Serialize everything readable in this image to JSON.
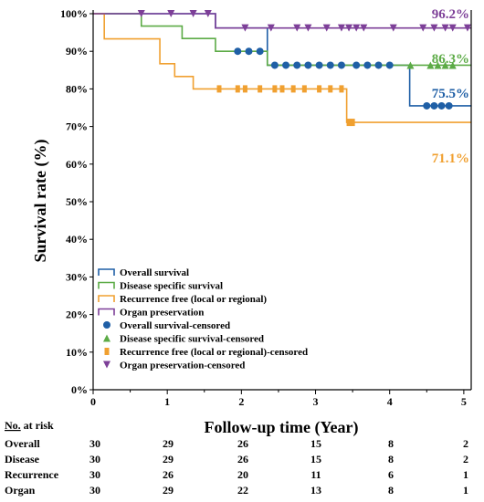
{
  "chart_data": {
    "type": "line",
    "title": "",
    "xlabel": "Follow-up time (Year)",
    "ylabel": "Survival rate (%)",
    "xlim": [
      0,
      5.1
    ],
    "ylim": [
      0,
      100
    ],
    "x_ticks": [
      "0",
      "1",
      "2",
      "3",
      "4",
      "5"
    ],
    "y_ticks": [
      "0%",
      "10%",
      "20%",
      "30%",
      "40%",
      "50%",
      "60%",
      "70%",
      "80%",
      "90%",
      "100%"
    ],
    "grid": false,
    "legend_position": "lower-left",
    "series": [
      {
        "name": "Overall survival",
        "censored_name": "Overall survival-censored",
        "color": "#1f5fa6",
        "marker": "circle",
        "steps": [
          [
            0,
            100
          ],
          [
            1.65,
            96.2
          ],
          [
            2.35,
            86.3
          ],
          [
            4.27,
            75.5
          ]
        ],
        "censored": [
          [
            1.95,
            90
          ],
          [
            2.1,
            90
          ],
          [
            2.25,
            90
          ],
          [
            2.45,
            86.3
          ],
          [
            2.6,
            86.3
          ],
          [
            2.75,
            86.3
          ],
          [
            2.9,
            86.3
          ],
          [
            3.05,
            86.3
          ],
          [
            3.2,
            86.3
          ],
          [
            3.35,
            86.3
          ],
          [
            3.55,
            86.3
          ],
          [
            3.7,
            86.3
          ],
          [
            3.85,
            86.3
          ],
          [
            4.0,
            86.3
          ],
          [
            4.5,
            75.5
          ],
          [
            4.6,
            75.5
          ],
          [
            4.7,
            75.5
          ],
          [
            4.8,
            75.5
          ]
        ],
        "end_label": "75.5%"
      },
      {
        "name": "Disease specific survival",
        "censored_name": "Disease specific survival-censored",
        "color": "#5cab46",
        "marker": "triangle",
        "steps": [
          [
            0,
            100
          ],
          [
            0.65,
            96.7
          ],
          [
            1.2,
            93.4
          ],
          [
            1.65,
            90
          ],
          [
            2.35,
            86.3
          ]
        ],
        "censored": [
          [
            4.28,
            86.3
          ],
          [
            4.55,
            86.3
          ],
          [
            4.65,
            86.3
          ],
          [
            4.75,
            86.3
          ],
          [
            4.85,
            86.3
          ]
        ],
        "end_label": "86.3%"
      },
      {
        "name": "Recurrence free (local or regional)",
        "censored_name": "Recurrence free (local or regional)-censored",
        "color": "#f0a030",
        "marker": "square",
        "steps": [
          [
            0,
            100
          ],
          [
            0.15,
            93.3
          ],
          [
            0.9,
            86.7
          ],
          [
            1.1,
            83.3
          ],
          [
            1.35,
            80
          ],
          [
            3.42,
            71.1
          ]
        ],
        "censored": [
          [
            1.7,
            80
          ],
          [
            1.95,
            80
          ],
          [
            2.05,
            80
          ],
          [
            2.25,
            80
          ],
          [
            2.45,
            80
          ],
          [
            2.55,
            80
          ],
          [
            2.7,
            80
          ],
          [
            2.85,
            80
          ],
          [
            3.05,
            80
          ],
          [
            3.2,
            80
          ],
          [
            3.35,
            80
          ],
          [
            3.45,
            71.1
          ],
          [
            3.5,
            71.1
          ]
        ],
        "end_label": "71.1%"
      },
      {
        "name": "Organ preservation",
        "censored_name": "Organ preservation-censored",
        "color": "#7d3f98",
        "marker": "triangle-down",
        "steps": [
          [
            0,
            100
          ],
          [
            1.65,
            96.2
          ]
        ],
        "censored": [
          [
            0.65,
            100
          ],
          [
            1.05,
            100
          ],
          [
            1.35,
            100
          ],
          [
            1.55,
            100
          ],
          [
            2.05,
            96.2
          ],
          [
            2.4,
            96.2
          ],
          [
            2.75,
            96.2
          ],
          [
            2.9,
            96.2
          ],
          [
            3.15,
            96.2
          ],
          [
            3.35,
            96.2
          ],
          [
            3.45,
            96.2
          ],
          [
            3.55,
            96.2
          ],
          [
            3.65,
            96.2
          ],
          [
            4.05,
            96.2
          ],
          [
            4.45,
            96.2
          ],
          [
            4.6,
            96.2
          ],
          [
            4.75,
            96.2
          ],
          [
            4.85,
            96.2
          ],
          [
            5.05,
            96.2
          ]
        ],
        "end_label": "96.2%"
      }
    ]
  },
  "risk_table": {
    "header": "No. at risk",
    "header_underlined": "No.",
    "header_rest": " at risk",
    "rows": [
      {
        "label": "Overall",
        "values": [
          "30",
          "29",
          "26",
          "15",
          "8",
          "2"
        ]
      },
      {
        "label": "Disease",
        "values": [
          "30",
          "29",
          "26",
          "15",
          "8",
          "2"
        ]
      },
      {
        "label": "Recurrence",
        "values": [
          "30",
          "26",
          "20",
          "11",
          "6",
          "1"
        ]
      },
      {
        "label": "Organ",
        "values": [
          "30",
          "29",
          "22",
          "13",
          "8",
          "1"
        ]
      }
    ]
  }
}
